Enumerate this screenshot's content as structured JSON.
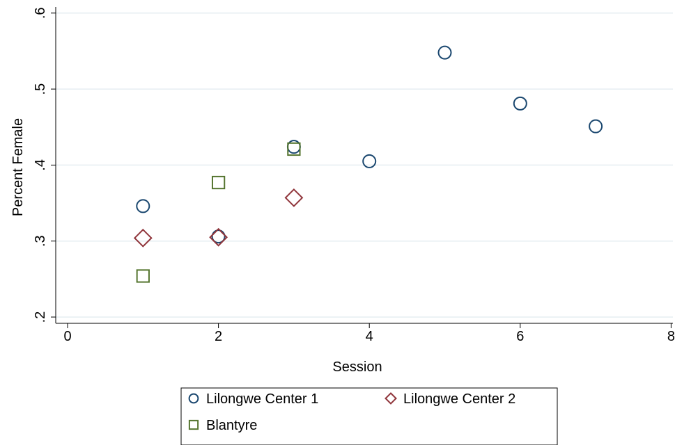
{
  "chart_data": {
    "type": "scatter",
    "title": "",
    "xlabel": "Session",
    "ylabel": "Percent Female",
    "xlim": [
      0,
      8
    ],
    "ylim": [
      0.2,
      0.6
    ],
    "xticks": [
      0,
      2,
      4,
      6,
      8
    ],
    "xtick_labels": [
      "0",
      "2",
      "4",
      "6",
      "8"
    ],
    "yticks": [
      0.2,
      0.3,
      0.4,
      0.5,
      0.6
    ],
    "ytick_labels": [
      ".2",
      ".3",
      ".4",
      ".5",
      ".6"
    ],
    "grid": true,
    "legend_position": "bottom",
    "series": [
      {
        "name": "Lilongwe Center 1",
        "marker": "circle",
        "color": "#1a476f",
        "points": [
          [
            1,
            0.346
          ],
          [
            2,
            0.306
          ],
          [
            3,
            0.424
          ],
          [
            4,
            0.405
          ],
          [
            5,
            0.548
          ],
          [
            6,
            0.481
          ],
          [
            7,
            0.451
          ]
        ]
      },
      {
        "name": "Lilongwe Center 2",
        "marker": "diamond",
        "color": "#90353b",
        "points": [
          [
            1,
            0.304
          ],
          [
            2,
            0.305
          ],
          [
            3,
            0.357
          ]
        ]
      },
      {
        "name": "Blantyre",
        "marker": "square",
        "color": "#55752f",
        "points": [
          [
            1,
            0.254
          ],
          [
            2,
            0.377
          ],
          [
            3,
            0.421
          ]
        ]
      }
    ]
  }
}
